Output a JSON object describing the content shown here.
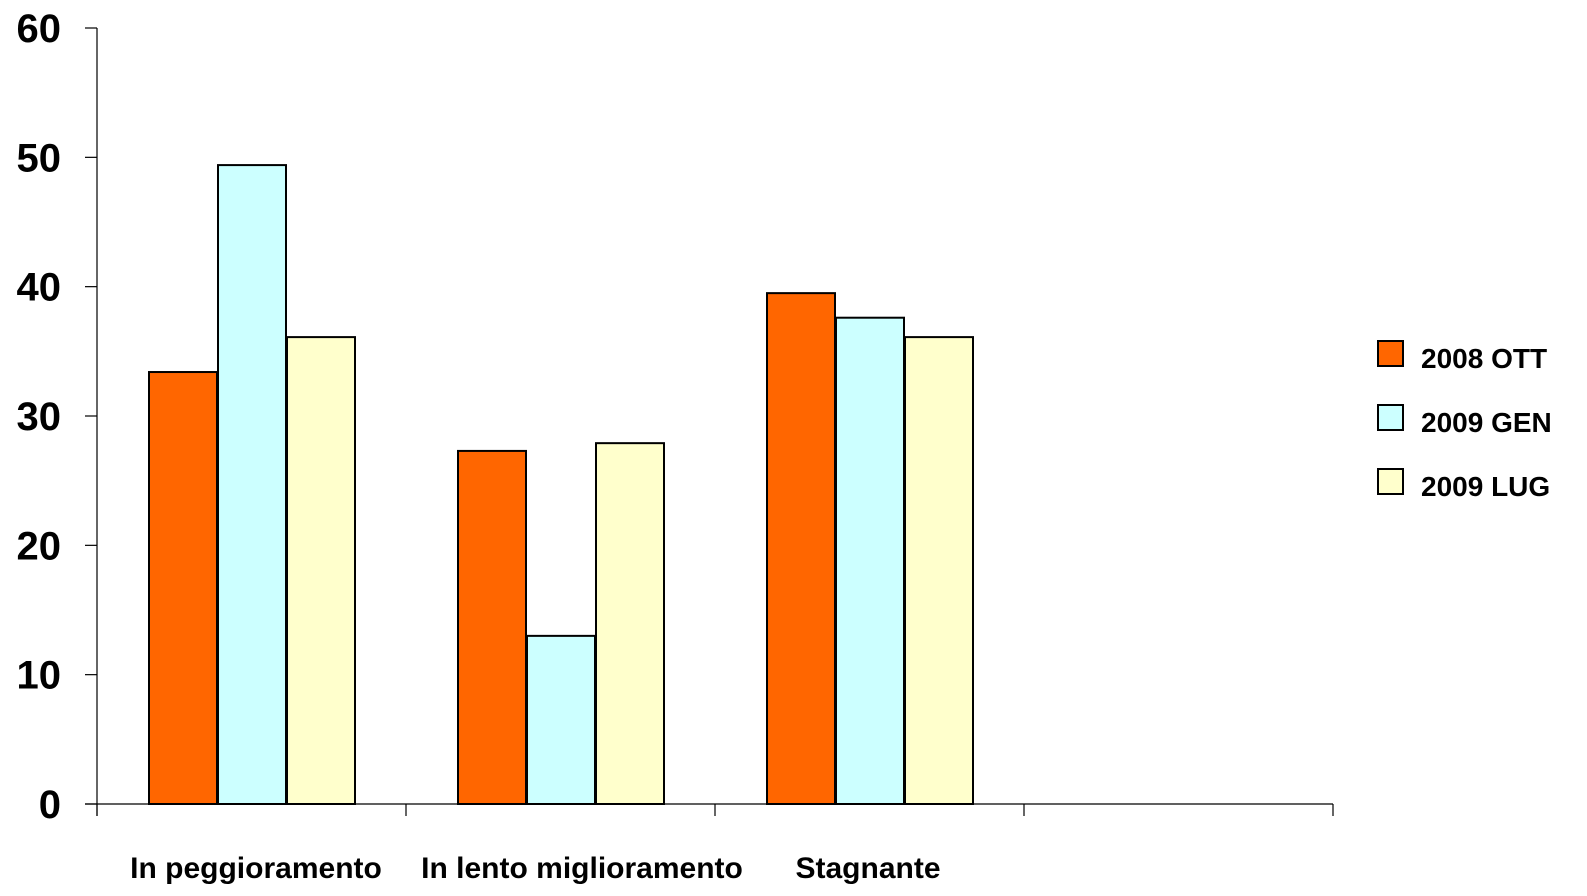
{
  "chart_data": {
    "type": "bar",
    "title": "",
    "xlabel": "",
    "ylabel": "",
    "ylim": [
      0,
      60
    ],
    "yticks": [
      0,
      10,
      20,
      30,
      40,
      50,
      60
    ],
    "categories": [
      "In peggioramento",
      "In lento miglioramento",
      "Stagnante",
      ""
    ],
    "series": [
      {
        "name": "2008 OTT",
        "color": "#ff6600",
        "values": [
          33.4,
          27.3,
          39.5,
          null
        ]
      },
      {
        "name": "2009 GEN",
        "color": "#ccffff",
        "values": [
          49.4,
          13.0,
          37.6,
          null
        ]
      },
      {
        "name": "2009 LUG",
        "color": "#ffffcc",
        "values": [
          36.1,
          27.9,
          36.1,
          null
        ]
      }
    ],
    "grid": false,
    "legend_position": "right"
  }
}
